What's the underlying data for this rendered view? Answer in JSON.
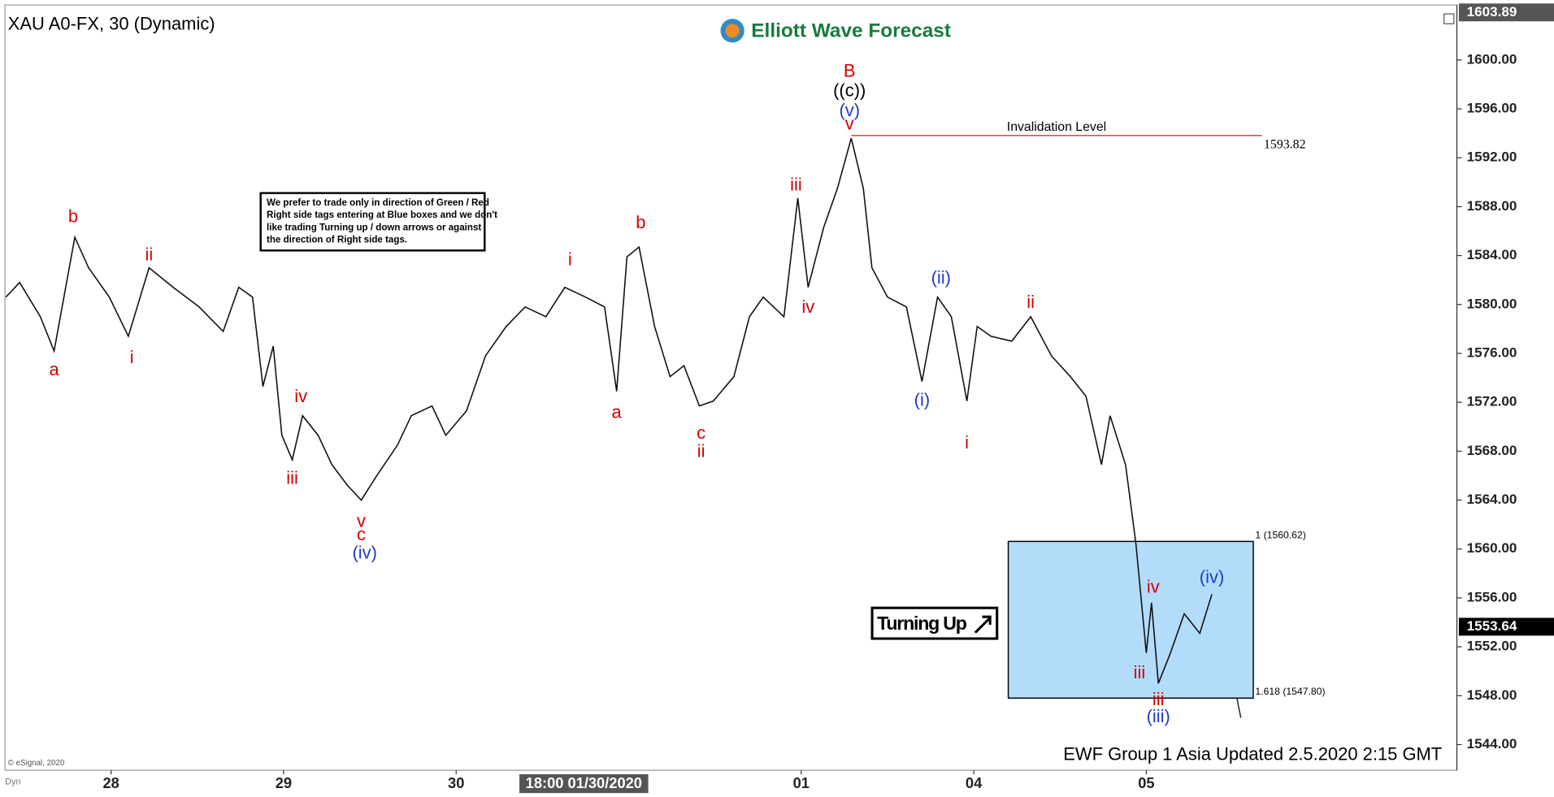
{
  "chart_data": {
    "type": "line",
    "title": "XAU A0-FX, 30 (Dynamic)",
    "logo": "Elliott Wave Forecast",
    "footer": "EWF Group 1 Asia Updated 2.5.2020 2:15 GMT",
    "copyright": "© eSignal, 2020",
    "corner_label": "Dyn",
    "color": "#111111",
    "x": [
      -0.61,
      -0.53,
      -0.41,
      -0.33,
      -0.21,
      -0.13,
      -0.01,
      0.1,
      0.22,
      0.36,
      0.51,
      0.65,
      0.74,
      0.82,
      0.88,
      0.94,
      0.99,
      1.05,
      1.11,
      1.2,
      1.28,
      1.37,
      1.45,
      1.54,
      1.66,
      1.74,
      1.86,
      1.94,
      2.06,
      2.17,
      2.29,
      2.4,
      2.52,
      2.63,
      2.75,
      2.86,
      2.93,
      2.99,
      3.06,
      3.15,
      3.24,
      3.32,
      3.41,
      3.49,
      3.61,
      3.7,
      3.78,
      3.9,
      3.98,
      4.04,
      4.13,
      4.21,
      4.29,
      4.36,
      4.41,
      4.5,
      4.61,
      4.7,
      4.79,
      4.87,
      4.96,
      5.02,
      5.1,
      5.22,
      5.33,
      5.45,
      5.56,
      5.65,
      5.74,
      5.79,
      5.88,
      5.94,
      6.0,
      6.03,
      6.07,
      6.14,
      6.22,
      6.31,
      6.38
    ],
    "values": [
      1580.6,
      1581.8,
      1579,
      1576.2,
      1585.5,
      1583,
      1580.6,
      1577.4,
      1583,
      1581.4,
      1579.8,
      1577.8,
      1581.4,
      1580.6,
      1573.3,
      1576.6,
      1569.3,
      1567.3,
      1570.9,
      1569.3,
      1566.9,
      1565.2,
      1564,
      1566,
      1568.5,
      1570.9,
      1571.7,
      1569.3,
      1571.3,
      1575.8,
      1578.2,
      1579.8,
      1579,
      1581.4,
      1580.6,
      1579.8,
      1572.9,
      1583.9,
      1584.7,
      1578.2,
      1574.1,
      1575,
      1571.7,
      1572.1,
      1574.1,
      1579,
      1580.6,
      1579,
      1588.7,
      1581.4,
      1586.3,
      1589.5,
      1593.6,
      1589.5,
      1583,
      1580.6,
      1579.8,
      1573.7,
      1580.6,
      1579,
      1572.1,
      1578.2,
      1577.4,
      1577,
      1579,
      1575.8,
      1574.1,
      1572.5,
      1566.9,
      1570.9,
      1566.9,
      1560.4,
      1551.5,
      1555.6,
      1549,
      1551.5,
      1554.7,
      1553.1,
      1556.3
    ],
    "xlim": [
      -0.615,
      7.8
    ],
    "xticks": [
      {
        "value": 0,
        "label": "28"
      },
      {
        "value": 1,
        "label": "29"
      },
      {
        "value": 2,
        "label": "30"
      },
      {
        "value": 4,
        "label": "01"
      },
      {
        "value": 5,
        "label": "04"
      },
      {
        "value": 6,
        "label": "05"
      }
    ],
    "cursor_label": {
      "value": 2.74,
      "label": "18:00 01/30/2020"
    },
    "ylim": [
      1541.9,
      1604.5
    ],
    "yticks": [
      {
        "value": 1544,
        "label": "1544.00"
      },
      {
        "value": 1548,
        "label": "1548.00"
      },
      {
        "value": 1552,
        "label": "1552.00"
      },
      {
        "value": 1556,
        "label": "1556.00"
      },
      {
        "value": 1560,
        "label": "1560.00"
      },
      {
        "value": 1564,
        "label": "1564.00"
      },
      {
        "value": 1568,
        "label": "1568.00"
      },
      {
        "value": 1572,
        "label": "1572.00"
      },
      {
        "value": 1576,
        "label": "1576.00"
      },
      {
        "value": 1580,
        "label": "1580.00"
      },
      {
        "value": 1584,
        "label": "1584.00"
      },
      {
        "value": 1588,
        "label": "1588.00"
      },
      {
        "value": 1592,
        "label": "1592.00"
      },
      {
        "value": 1596,
        "label": "1596.00"
      },
      {
        "value": 1600,
        "label": "1600.00"
      }
    ],
    "price_markers": [
      {
        "value": 1603.89,
        "label": "1603.89",
        "color": "#555555"
      },
      {
        "value": 1553.64,
        "label": "1553.64",
        "color": "#000000"
      }
    ],
    "invalidation": {
      "label": "Invalidation Level",
      "value": 1593.82,
      "start": 4.29,
      "end": 6.67,
      "color": "#e03030"
    },
    "box": {
      "x0": 5.2,
      "x1": 6.62,
      "top": {
        "value": 1560.62,
        "label": "1 (1560.62)"
      },
      "bottom": {
        "value": 1547.8,
        "label": "1.618 (1547.80)"
      },
      "color": "#b3dcfb"
    },
    "note": [
      "We prefer to trade only in direction of Green / Red",
      "Right side tags entering at Blue boxes and we don't",
      "like trading Turning up / down arrows or against",
      "the direction of Right side tags."
    ],
    "turning": "Turning Up",
    "annotations": [
      {
        "text": "a",
        "color": "#d40000",
        "x": -0.33,
        "y": 1574.6
      },
      {
        "text": "b",
        "color": "#d40000",
        "x": -0.22,
        "y": 1587.1
      },
      {
        "text": "ii",
        "color": "#d40000",
        "x": 0.22,
        "y": 1584.0
      },
      {
        "text": "i",
        "color": "#d40000",
        "x": 0.12,
        "y": 1575.6
      },
      {
        "text": "iv",
        "color": "#d40000",
        "x": 1.1,
        "y": 1572.4
      },
      {
        "text": "iii",
        "color": "#d40000",
        "x": 1.05,
        "y": 1565.7
      },
      {
        "text": "v",
        "color": "#d40000",
        "x": 1.45,
        "y": 1562.2
      },
      {
        "text": "c",
        "color": "#d40000",
        "x": 1.45,
        "y": 1561.1
      },
      {
        "text": "(iv)",
        "color": "#1f3fbf",
        "x": 1.47,
        "y": 1559.6
      },
      {
        "text": "i",
        "color": "#d40000",
        "x": 2.66,
        "y": 1583.6
      },
      {
        "text": "b",
        "color": "#d40000",
        "x": 3.07,
        "y": 1586.6
      },
      {
        "text": "a",
        "color": "#d40000",
        "x": 2.93,
        "y": 1571.1
      },
      {
        "text": "c",
        "color": "#d40000",
        "x": 3.42,
        "y": 1569.4
      },
      {
        "text": "ii",
        "color": "#d40000",
        "x": 3.42,
        "y": 1567.9
      },
      {
        "text": "iii",
        "color": "#d40000",
        "x": 3.97,
        "y": 1589.7
      },
      {
        "text": "iv",
        "color": "#d40000",
        "x": 4.04,
        "y": 1579.7
      },
      {
        "text": "B",
        "color": "#d40000",
        "x": 4.28,
        "y": 1599.0
      },
      {
        "text": "((c))",
        "color": "#000000",
        "x": 4.28,
        "y": 1597.4
      },
      {
        "text": "(v)",
        "color": "#1f3fbf",
        "x": 4.28,
        "y": 1595.8
      },
      {
        "text": "v",
        "color": "#d40000",
        "x": 4.28,
        "y": 1594.7
      },
      {
        "text": "(ii)",
        "color": "#1f3fbf",
        "x": 4.81,
        "y": 1582.1
      },
      {
        "text": "(i)",
        "color": "#1f3fbf",
        "x": 4.7,
        "y": 1572.1
      },
      {
        "text": "i",
        "color": "#d40000",
        "x": 4.96,
        "y": 1568.6
      },
      {
        "text": "ii",
        "color": "#d40000",
        "x": 5.33,
        "y": 1580.1
      },
      {
        "text": "iv",
        "color": "#d40000",
        "x": 6.04,
        "y": 1556.8
      },
      {
        "text": "(iv)",
        "color": "#1f3fbf",
        "x": 6.38,
        "y": 1557.6
      },
      {
        "text": "iii",
        "color": "#d40000",
        "x": 5.96,
        "y": 1549.8
      },
      {
        "text": "iii",
        "color": "#d40000",
        "x": 6.07,
        "y": 1547.6
      },
      {
        "text": "(iii)",
        "color": "#1f3fbf",
        "x": 6.07,
        "y": 1546.2
      }
    ]
  }
}
